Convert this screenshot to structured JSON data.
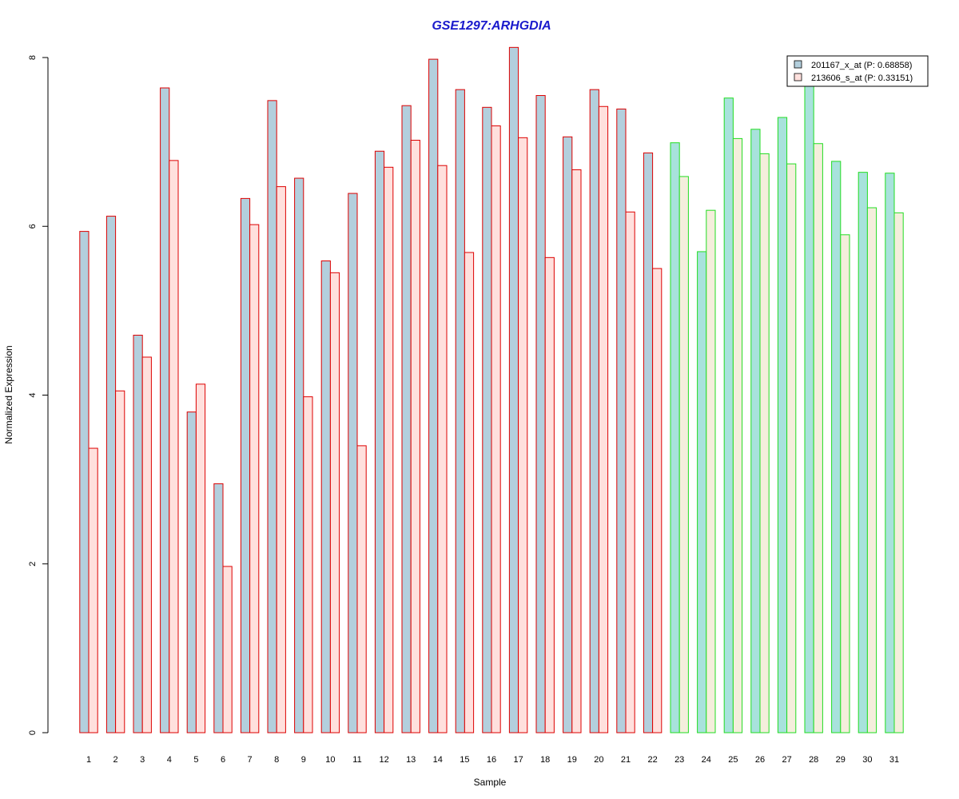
{
  "chart_data": {
    "type": "bar",
    "title": "GSE1297:ARHGDIA",
    "xlabel": "Sample",
    "ylabel": "Normalized Expression",
    "ylim": [
      0,
      8
    ],
    "yticks": [
      0,
      2,
      4,
      6,
      8
    ],
    "grid": false,
    "legend_position": "top-right",
    "categories": [
      "1",
      "2",
      "3",
      "4",
      "5",
      "6",
      "7",
      "8",
      "9",
      "10",
      "11",
      "12",
      "13",
      "14",
      "15",
      "16",
      "17",
      "18",
      "19",
      "20",
      "21",
      "22",
      "23",
      "24",
      "25",
      "26",
      "27",
      "28",
      "29",
      "30",
      "31"
    ],
    "group_colors": {
      "group_1": {
        "samples": "1-22",
        "border": "#dd0000",
        "fill_series_1": "#b3cfdd",
        "fill_series_2": "#ffe0dd"
      },
      "group_2": {
        "samples": "23-31",
        "border": "#22dd22",
        "fill_series_1": "#a8e2dc",
        "fill_series_2": "#f4eedc"
      }
    },
    "series": [
      {
        "name": "201167_x_at (P: 0.68858)",
        "legend_color": "#b3cfdd",
        "values": [
          5.94,
          6.12,
          4.71,
          7.64,
          3.8,
          2.95,
          6.33,
          7.49,
          6.57,
          5.59,
          6.39,
          6.89,
          7.43,
          7.98,
          7.62,
          7.41,
          8.12,
          7.55,
          7.06,
          7.62,
          7.39,
          6.87,
          6.99,
          5.7,
          7.52,
          7.15,
          7.29,
          7.72,
          6.77,
          6.64,
          6.63
        ]
      },
      {
        "name": "213606_s_at (P: 0.33151)",
        "legend_color": "#ffe0dd",
        "values": [
          3.37,
          4.05,
          4.45,
          6.78,
          4.13,
          1.97,
          6.02,
          6.47,
          3.98,
          5.45,
          3.4,
          6.7,
          7.02,
          6.72,
          5.69,
          7.19,
          7.05,
          5.63,
          6.67,
          7.42,
          6.17,
          5.5,
          6.59,
          6.19,
          7.04,
          6.86,
          6.74,
          6.98,
          5.9,
          6.22,
          6.16
        ]
      }
    ]
  }
}
